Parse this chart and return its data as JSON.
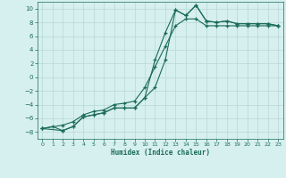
{
  "xlabel": "Humidex (Indice chaleur)",
  "bg_color": "#d6efef",
  "grid_color": "#b8d8d8",
  "line_color": "#1a6b5a",
  "xlim": [
    -0.5,
    23.5
  ],
  "ylim": [
    -9,
    11
  ],
  "xticks": [
    0,
    1,
    2,
    3,
    4,
    5,
    6,
    7,
    8,
    9,
    10,
    11,
    12,
    13,
    14,
    15,
    16,
    17,
    18,
    19,
    20,
    21,
    22,
    23
  ],
  "yticks": [
    -8,
    -6,
    -4,
    -2,
    0,
    2,
    4,
    6,
    8,
    10
  ],
  "line1_x": [
    0,
    1,
    2,
    3,
    4,
    5,
    6,
    7,
    8,
    9,
    10,
    11,
    12,
    13,
    14,
    15,
    16,
    17,
    18,
    19,
    20,
    21,
    22,
    23
  ],
  "line1_y": [
    -7.5,
    -7.2,
    -7.8,
    -7.2,
    -5.8,
    -5.5,
    -5.2,
    -4.5,
    -4.5,
    -4.5,
    -3.0,
    -1.5,
    2.5,
    9.8,
    9.0,
    10.5,
    8.2,
    8.0,
    8.2,
    7.8,
    7.8,
    7.8,
    7.8,
    7.5
  ],
  "line2_x": [
    0,
    2,
    3,
    4,
    5,
    6,
    7,
    8,
    9,
    10,
    11,
    12,
    13,
    14,
    15,
    16,
    17,
    18,
    19,
    20,
    21,
    22,
    23
  ],
  "line2_y": [
    -7.5,
    -7.8,
    -7.2,
    -5.8,
    -5.5,
    -5.2,
    -4.5,
    -4.5,
    -4.5,
    -3.0,
    2.5,
    6.5,
    9.8,
    9.0,
    10.5,
    8.2,
    8.0,
    8.2,
    7.8,
    7.8,
    7.8,
    7.8,
    7.5
  ],
  "line3_x": [
    0,
    2,
    3,
    4,
    5,
    6,
    7,
    8,
    9,
    10,
    11,
    12,
    13,
    14,
    15,
    16,
    17,
    18,
    19,
    20,
    21,
    22,
    23
  ],
  "line3_y": [
    -7.5,
    -7.0,
    -6.5,
    -5.5,
    -5.0,
    -4.8,
    -4.0,
    -3.8,
    -3.5,
    -1.5,
    1.5,
    4.5,
    7.5,
    8.5,
    8.5,
    7.5,
    7.5,
    7.5,
    7.5,
    7.5,
    7.5,
    7.5,
    7.5
  ]
}
